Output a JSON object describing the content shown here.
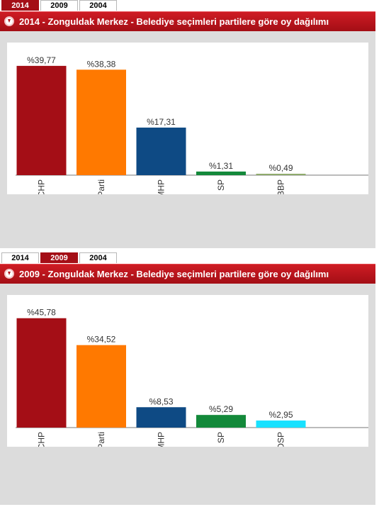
{
  "tabs": [
    "2014",
    "2009",
    "2004"
  ],
  "chart_data": [
    {
      "type": "bar",
      "title": "2014 - Zonguldak Merkez - Belediye seçimleri partilere göre oy dağılımı",
      "active_tab": "2014",
      "categories": [
        "CHP",
        "AK Parti",
        "MHP",
        "SP",
        "BBP"
      ],
      "values": [
        39.77,
        38.38,
        17.31,
        1.31,
        0.49
      ],
      "labels": [
        "%39,77",
        "%38,38",
        "%17,31",
        "%1,31",
        "%0,49"
      ],
      "colors": [
        "#a40e16",
        "#ff7900",
        "#0e4a84",
        "#13893a",
        "#8aa866"
      ],
      "xlabel": "",
      "ylabel": "",
      "ylim": [
        0,
        40
      ],
      "grid": false,
      "legend": "none"
    },
    {
      "type": "bar",
      "title": "2009 - Zonguldak Merkez - Belediye seçimleri partilere göre oy dağılımı",
      "active_tab": "2009",
      "categories": [
        "CHP",
        "AK Parti",
        "MHP",
        "SP",
        "DSP"
      ],
      "values": [
        45.78,
        34.52,
        8.53,
        5.29,
        2.95
      ],
      "labels": [
        "%45,78",
        "%34,52",
        "%8,53",
        "%5,29",
        "%2,95"
      ],
      "colors": [
        "#a40e16",
        "#ff7900",
        "#0e4a84",
        "#13893a",
        "#19e1ff"
      ],
      "xlabel": "",
      "ylabel": "",
      "ylim": [
        0,
        46
      ],
      "grid": false,
      "legend": "none"
    }
  ]
}
